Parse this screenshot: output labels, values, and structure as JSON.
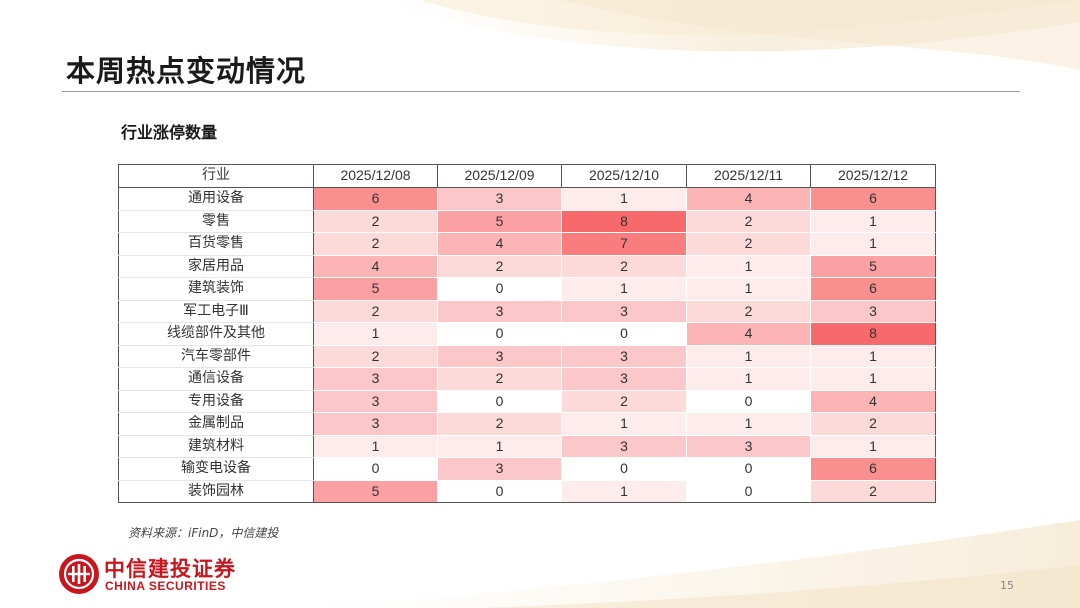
{
  "page": {
    "title": "本周热点变动情况",
    "number": "15"
  },
  "source_note": "资料来源：iFinD，中信建投",
  "logo": {
    "name_cn": "中信建投证券",
    "name_en": "CHINA SECURITIES",
    "color": "#c8161d"
  },
  "colors": {
    "heat_min": "#ffffff",
    "heat_max": "#f8696b"
  },
  "chart_data": {
    "type": "heatmap",
    "title": "行业涨停数量",
    "category_header": "行业",
    "columns": [
      "2025/12/08",
      "2025/12/09",
      "2025/12/10",
      "2025/12/11",
      "2025/12/12"
    ],
    "rows": [
      {
        "name": "通用设备",
        "values": [
          6,
          3,
          1,
          4,
          6
        ]
      },
      {
        "name": "零售",
        "values": [
          2,
          5,
          8,
          2,
          1
        ]
      },
      {
        "name": "百货零售",
        "values": [
          2,
          4,
          7,
          2,
          1
        ]
      },
      {
        "name": "家居用品",
        "values": [
          4,
          2,
          2,
          1,
          5
        ]
      },
      {
        "name": "建筑装饰",
        "values": [
          5,
          0,
          1,
          1,
          6
        ]
      },
      {
        "name": "军工电子Ⅲ",
        "values": [
          2,
          3,
          3,
          2,
          3
        ]
      },
      {
        "name": "线缆部件及其他",
        "values": [
          1,
          0,
          0,
          4,
          8
        ]
      },
      {
        "name": "汽车零部件",
        "values": [
          2,
          3,
          3,
          1,
          1
        ]
      },
      {
        "name": "通信设备",
        "values": [
          3,
          2,
          3,
          1,
          1
        ]
      },
      {
        "name": "专用设备",
        "values": [
          3,
          0,
          2,
          0,
          4
        ]
      },
      {
        "name": "金属制品",
        "values": [
          3,
          2,
          1,
          1,
          2
        ]
      },
      {
        "name": "建筑材料",
        "values": [
          1,
          1,
          3,
          3,
          1
        ]
      },
      {
        "name": "输变电设备",
        "values": [
          0,
          3,
          0,
          0,
          6
        ]
      },
      {
        "name": "装饰园林",
        "values": [
          5,
          0,
          1,
          0,
          2
        ]
      }
    ]
  }
}
